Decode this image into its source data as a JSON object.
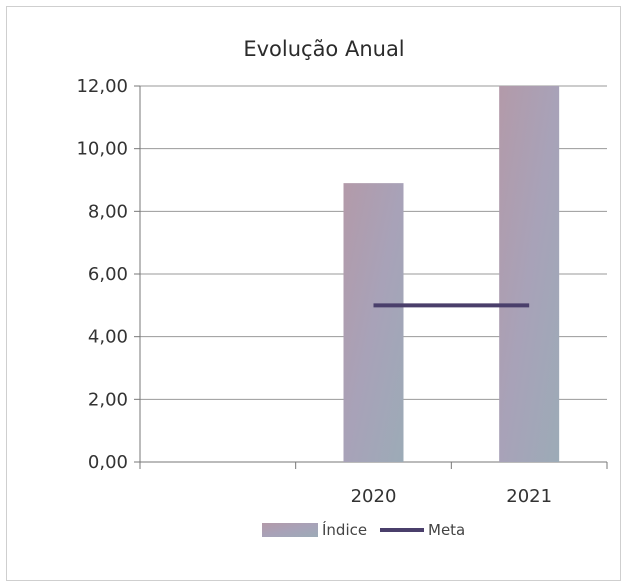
{
  "chart_data": {
    "type": "bar",
    "title": "Evolução Anual",
    "categories": [
      "",
      "2020",
      "2021"
    ],
    "series": [
      {
        "name": "Índice",
        "type": "bar",
        "values": [
          null,
          8.9,
          12.0
        ]
      },
      {
        "name": "Meta",
        "type": "line",
        "values": [
          null,
          5.0,
          5.0
        ]
      }
    ],
    "y_ticks": [
      "0,00",
      "2,00",
      "4,00",
      "6,00",
      "8,00",
      "10,00",
      "12,00"
    ],
    "ylim": [
      0,
      12
    ],
    "grid": true,
    "legend_position": "bottom",
    "colors": {
      "bar": "#a99bb3",
      "bar_alt": "#9eaab8",
      "line": "#4a3f6b",
      "grid": "#9a9a9a",
      "axis": "#777777"
    }
  }
}
